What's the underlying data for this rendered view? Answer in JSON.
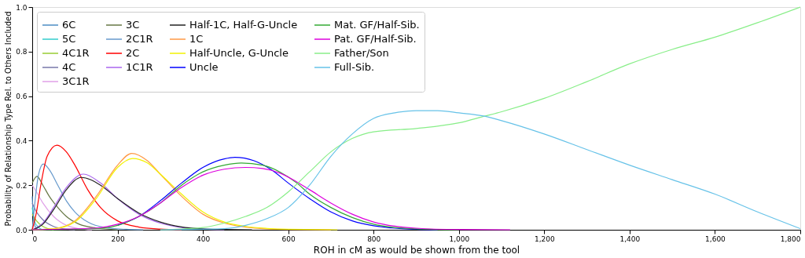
{
  "chart_data": {
    "type": "line",
    "xlabel": "ROH in cM as would be shown from the tool",
    "ylabel": "Probability of Relationship Type Rel. to Others Included",
    "xlim": [
      0,
      1800
    ],
    "ylim": [
      0,
      1.0
    ],
    "xticks": [
      0,
      200,
      400,
      600,
      800,
      {
        "value": 1000,
        "label": "1,000"
      },
      {
        "value": 1200,
        "label": "1,200"
      },
      {
        "value": 1400,
        "label": "1,400"
      },
      {
        "value": 1600,
        "label": "1,600"
      },
      {
        "value": 1800,
        "label": "1,800"
      }
    ],
    "yticks": [
      {
        "value": 0,
        "label": "0.0"
      },
      0.2,
      0.4,
      0.6,
      0.8,
      {
        "value": 1,
        "label": "1.0"
      }
    ],
    "grid": false,
    "legend": "top left",
    "series": [
      {
        "name": "6C",
        "color": "#4c8cc4",
        "x": [
          0,
          3,
          8,
          15
        ],
        "values": [
          0.15,
          0.05,
          0.01,
          0
        ]
      },
      {
        "name": "5C",
        "color": "#33cccc",
        "x": [
          0,
          5,
          15,
          25
        ],
        "values": [
          0.1,
          0.04,
          0.01,
          0
        ]
      },
      {
        "name": "4C1R",
        "color": "#99cc33",
        "x": [
          0,
          10,
          25,
          50
        ],
        "values": [
          0.07,
          0.04,
          0.015,
          0
        ]
      },
      {
        "name": "4C",
        "color": "#7777aa",
        "x": [
          0,
          10,
          25,
          50,
          80,
          100
        ],
        "values": [
          0.12,
          0.08,
          0.045,
          0.015,
          0.003,
          0
        ]
      },
      {
        "name": "3C1R",
        "color": "#e0a0e8",
        "x": [
          0,
          10,
          25,
          50,
          80,
          110,
          140
        ],
        "values": [
          0.2,
          0.17,
          0.12,
          0.06,
          0.02,
          0.005,
          0
        ]
      },
      {
        "name": "3C",
        "color": "#667744",
        "x": [
          0,
          11,
          25,
          40,
          60,
          80,
          110,
          150,
          200
        ],
        "values": [
          0.21,
          0.24,
          0.2,
          0.15,
          0.1,
          0.06,
          0.025,
          0.008,
          0
        ]
      },
      {
        "name": "2C1R",
        "color": "#6699cc",
        "x": [
          0,
          5,
          15,
          26,
          40,
          60,
          80,
          100,
          130,
          170,
          220,
          260
        ],
        "values": [
          0,
          0.1,
          0.25,
          0.295,
          0.27,
          0.2,
          0.13,
          0.08,
          0.035,
          0.01,
          0.002,
          0
        ]
      },
      {
        "name": "2C",
        "color": "#ff0000",
        "x": [
          0,
          10,
          20,
          35,
          58,
          80,
          100,
          130,
          160,
          200,
          250,
          300,
          350
        ],
        "values": [
          0,
          0.08,
          0.2,
          0.33,
          0.38,
          0.35,
          0.29,
          0.18,
          0.1,
          0.04,
          0.012,
          0.003,
          0
        ]
      },
      {
        "name": "1C1R",
        "color": "#aa66ee",
        "x": [
          0,
          25,
          50,
          80,
          120,
          160,
          200,
          250,
          300,
          350,
          400,
          450
        ],
        "values": [
          0,
          0.03,
          0.1,
          0.19,
          0.25,
          0.21,
          0.14,
          0.07,
          0.03,
          0.01,
          0.003,
          0
        ]
      },
      {
        "name": "Half-1C, Half-G-Uncle",
        "color": "#222222",
        "x": [
          0,
          25,
          50,
          80,
          115,
          160,
          200,
          250,
          300,
          350,
          400,
          450,
          515
        ],
        "values": [
          0,
          0.025,
          0.09,
          0.18,
          0.235,
          0.2,
          0.14,
          0.075,
          0.035,
          0.013,
          0.004,
          0.001,
          0
        ]
      },
      {
        "name": "1C",
        "color": "#ff9944",
        "x": [
          0,
          50,
          100,
          150,
          200,
          233,
          270,
          300,
          350,
          400,
          450,
          500,
          550,
          600,
          700
        ],
        "values": [
          0,
          0.005,
          0.04,
          0.15,
          0.29,
          0.343,
          0.31,
          0.25,
          0.15,
          0.07,
          0.03,
          0.012,
          0.004,
          0.001,
          0
        ]
      },
      {
        "name": "Half-Uncle, G-Uncle",
        "color": "#f2f200",
        "x": [
          0,
          50,
          100,
          150,
          200,
          235,
          270,
          300,
          350,
          400,
          450,
          500,
          550,
          600,
          715
        ],
        "values": [
          0,
          0.004,
          0.035,
          0.14,
          0.28,
          0.32,
          0.3,
          0.25,
          0.16,
          0.08,
          0.035,
          0.015,
          0.006,
          0.002,
          0
        ]
      },
      {
        "name": "Uncle",
        "color": "#0000ff",
        "x": [
          200,
          250,
          300,
          350,
          400,
          450,
          475,
          520,
          560,
          600,
          650,
          700,
          750,
          800,
          850,
          900,
          950
        ],
        "values": [
          0.02,
          0.06,
          0.13,
          0.21,
          0.28,
          0.318,
          0.325,
          0.31,
          0.27,
          0.21,
          0.14,
          0.08,
          0.04,
          0.018,
          0.007,
          0.002,
          0
        ]
      },
      {
        "name": "Mat. GF/Half-Sib.",
        "color": "#33aa33",
        "x": [
          0,
          150,
          200,
          250,
          300,
          350,
          400,
          450,
          490,
          540,
          580,
          620,
          650,
          700,
          750,
          800,
          850,
          900,
          1000
        ],
        "values": [
          0,
          0.006,
          0.02,
          0.06,
          0.12,
          0.2,
          0.26,
          0.29,
          0.3,
          0.29,
          0.26,
          0.21,
          0.16,
          0.1,
          0.055,
          0.025,
          0.01,
          0.004,
          0
        ]
      },
      {
        "name": "Pat. GF/Half-Sib.",
        "color": "#dd00dd",
        "x": [
          0,
          150,
          200,
          250,
          300,
          350,
          400,
          450,
          500,
          540,
          580,
          620,
          650,
          700,
          750,
          800,
          850,
          900,
          1000,
          1120
        ],
        "values": [
          0,
          0.008,
          0.025,
          0.06,
          0.12,
          0.19,
          0.245,
          0.272,
          0.28,
          0.275,
          0.255,
          0.215,
          0.18,
          0.12,
          0.07,
          0.035,
          0.016,
          0.007,
          0.001,
          0
        ]
      },
      {
        "name": "Father/Son",
        "color": "#88ee88",
        "x": [
          300,
          400,
          450,
          500,
          550,
          600,
          650,
          700,
          750,
          800,
          900,
          1000,
          1060,
          1100,
          1200,
          1300,
          1400,
          1500,
          1600,
          1700,
          1800
        ],
        "values": [
          0,
          0.01,
          0.03,
          0.06,
          0.1,
          0.17,
          0.26,
          0.35,
          0.41,
          0.44,
          0.455,
          0.48,
          0.51,
          0.53,
          0.59,
          0.665,
          0.745,
          0.81,
          0.865,
          0.93,
          1.0
        ]
      },
      {
        "name": "Full-Sib.",
        "color": "#66c2e8",
        "x": [
          300,
          450,
          500,
          550,
          600,
          650,
          700,
          750,
          800,
          850,
          900,
          950,
          1000,
          1060,
          1100,
          1200,
          1300,
          1400,
          1500,
          1600,
          1700,
          1800
        ],
        "values": [
          0,
          0.005,
          0.02,
          0.05,
          0.1,
          0.2,
          0.33,
          0.43,
          0.5,
          0.525,
          0.535,
          0.535,
          0.525,
          0.51,
          0.49,
          0.43,
          0.36,
          0.29,
          0.225,
          0.16,
          0.08,
          0.005
        ]
      }
    ]
  }
}
